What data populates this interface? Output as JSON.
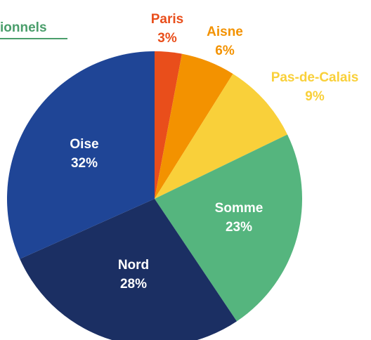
{
  "chart_data": {
    "type": "pie",
    "title": "ionnels",
    "title_color": "#4a9e6b",
    "categories": [
      "Paris",
      "Aisne",
      "Pas-de-Calais",
      "Somme",
      "Nord",
      "Oise"
    ],
    "values": [
      3,
      6,
      9,
      23,
      28,
      32
    ],
    "value_labels": [
      "3%",
      "6%",
      "9%",
      "23%",
      "28%",
      "32%"
    ],
    "colors": [
      "#e94e1b",
      "#f39200",
      "#f9d03a",
      "#55b57e",
      "#1b2f63",
      "#1f4596"
    ]
  }
}
